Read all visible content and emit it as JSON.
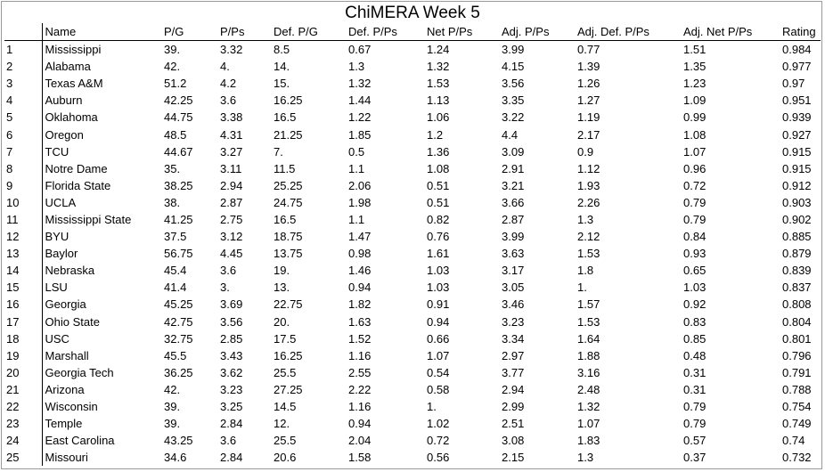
{
  "title": "ChiMERA Week 5",
  "columns": [
    "",
    "Name",
    "P/G",
    "P/Ps",
    "Def. P/G",
    "Def. P/Ps",
    "Net P/Ps",
    "Adj. P/Ps",
    "Adj. Def. P/Ps",
    "Adj. Net P/Ps",
    "Rating"
  ],
  "rows": [
    [
      "1",
      "Mississippi",
      "39.",
      "3.32",
      "8.5",
      "0.67",
      "1.24",
      "3.99",
      "0.77",
      "1.51",
      "0.984"
    ],
    [
      "2",
      "Alabama",
      "42.",
      "4.",
      "14.",
      "1.3",
      "1.32",
      "4.15",
      "1.39",
      "1.35",
      "0.977"
    ],
    [
      "3",
      "Texas A&M",
      "51.2",
      "4.2",
      "15.",
      "1.32",
      "1.53",
      "3.56",
      "1.26",
      "1.23",
      "0.97"
    ],
    [
      "4",
      "Auburn",
      "42.25",
      "3.6",
      "16.25",
      "1.44",
      "1.13",
      "3.35",
      "1.27",
      "1.09",
      "0.951"
    ],
    [
      "5",
      "Oklahoma",
      "44.75",
      "3.38",
      "16.5",
      "1.22",
      "1.06",
      "3.22",
      "1.19",
      "0.99",
      "0.939"
    ],
    [
      "6",
      "Oregon",
      "48.5",
      "4.31",
      "21.25",
      "1.85",
      "1.2",
      "4.4",
      "2.17",
      "1.08",
      "0.927"
    ],
    [
      "7",
      "TCU",
      "44.67",
      "3.27",
      "7.",
      "0.5",
      "1.36",
      "3.09",
      "0.9",
      "1.07",
      "0.915"
    ],
    [
      "8",
      "Notre Dame",
      "35.",
      "3.11",
      "11.5",
      "1.1",
      "1.08",
      "2.91",
      "1.12",
      "0.96",
      "0.915"
    ],
    [
      "9",
      "Florida State",
      "38.25",
      "2.94",
      "25.25",
      "2.06",
      "0.51",
      "3.21",
      "1.93",
      "0.72",
      "0.912"
    ],
    [
      "10",
      "UCLA",
      "38.",
      "2.87",
      "24.75",
      "1.98",
      "0.51",
      "3.66",
      "2.26",
      "0.79",
      "0.903"
    ],
    [
      "11",
      "Mississippi State",
      "41.25",
      "2.75",
      "16.5",
      "1.1",
      "0.82",
      "2.87",
      "1.3",
      "0.79",
      "0.902"
    ],
    [
      "12",
      "BYU",
      "37.5",
      "3.12",
      "18.75",
      "1.47",
      "0.76",
      "3.99",
      "2.12",
      "0.84",
      "0.885"
    ],
    [
      "13",
      "Baylor",
      "56.75",
      "4.45",
      "13.75",
      "0.98",
      "1.61",
      "3.63",
      "1.53",
      "0.93",
      "0.879"
    ],
    [
      "14",
      "Nebraska",
      "45.4",
      "3.6",
      "19.",
      "1.46",
      "1.03",
      "3.17",
      "1.8",
      "0.65",
      "0.839"
    ],
    [
      "15",
      "LSU",
      "41.4",
      "3.",
      "13.",
      "0.94",
      "1.03",
      "3.05",
      "1.",
      "1.03",
      "0.837"
    ],
    [
      "16",
      "Georgia",
      "45.25",
      "3.69",
      "22.75",
      "1.82",
      "0.91",
      "3.46",
      "1.57",
      "0.92",
      "0.808"
    ],
    [
      "17",
      "Ohio State",
      "42.75",
      "3.56",
      "20.",
      "1.63",
      "0.94",
      "3.23",
      "1.53",
      "0.83",
      "0.804"
    ],
    [
      "18",
      "USC",
      "32.75",
      "2.85",
      "17.5",
      "1.52",
      "0.66",
      "3.34",
      "1.64",
      "0.85",
      "0.801"
    ],
    [
      "19",
      "Marshall",
      "45.5",
      "3.43",
      "16.25",
      "1.16",
      "1.07",
      "2.97",
      "1.88",
      "0.48",
      "0.796"
    ],
    [
      "20",
      "Georgia Tech",
      "36.25",
      "3.62",
      "25.5",
      "2.55",
      "0.54",
      "3.77",
      "3.16",
      "0.31",
      "0.791"
    ],
    [
      "21",
      "Arizona",
      "42.",
      "3.23",
      "27.25",
      "2.22",
      "0.58",
      "2.94",
      "2.48",
      "0.31",
      "0.788"
    ],
    [
      "22",
      "Wisconsin",
      "39.",
      "3.25",
      "14.5",
      "1.16",
      "1.",
      "2.99",
      "1.32",
      "0.79",
      "0.754"
    ],
    [
      "23",
      "Temple",
      "39.",
      "2.84",
      "12.",
      "0.94",
      "1.02",
      "2.51",
      "1.07",
      "0.79",
      "0.749"
    ],
    [
      "24",
      "East Carolina",
      "43.25",
      "3.6",
      "25.5",
      "2.04",
      "0.72",
      "3.08",
      "1.83",
      "0.57",
      "0.74"
    ],
    [
      "25",
      "Missouri",
      "34.6",
      "2.84",
      "20.6",
      "1.58",
      "0.56",
      "2.15",
      "1.3",
      "0.37",
      "0.732"
    ]
  ]
}
